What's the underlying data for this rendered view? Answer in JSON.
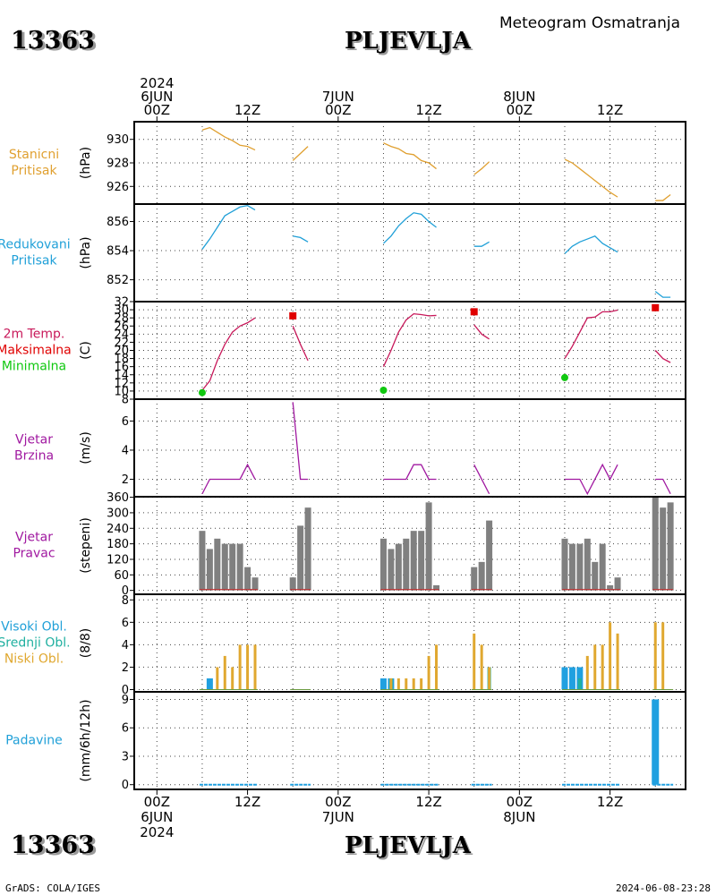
{
  "header": {
    "station_id": "13363",
    "station_name": "PLJEVLJA",
    "title": "Meteogram Osmatranja"
  },
  "footer": {
    "left": "GrADS: COLA/IGES",
    "right": "2024-06-08-23:28"
  },
  "colors": {
    "pressure": "#e0a030",
    "reduced": "#20a0d8",
    "temp": "#c8185a",
    "max": "#e00000",
    "min": "#10c810",
    "wind": "#a018a0",
    "direction_bar": "#808080",
    "direction_base": "#c03030",
    "high_cloud": "#20a0e0",
    "mid_cloud": "#20b0a0",
    "low_cloud": "#e0a830",
    "precip": "#20a0e0"
  },
  "time_axis": {
    "top": [
      {
        "h": 0,
        "lines": [
          "2024",
          "6JUN",
          "00Z"
        ]
      },
      {
        "h": 12,
        "lines": [
          "12Z"
        ]
      },
      {
        "h": 24,
        "lines": [
          "7JUN",
          "00Z"
        ]
      },
      {
        "h": 36,
        "lines": [
          "12Z"
        ]
      },
      {
        "h": 48,
        "lines": [
          "8JUN",
          "00Z"
        ]
      },
      {
        "h": 60,
        "lines": [
          "12Z"
        ]
      }
    ],
    "bottom": [
      {
        "h": 0,
        "lines": [
          "00Z",
          "6JUN",
          "2024"
        ]
      },
      {
        "h": 12,
        "lines": [
          "12Z"
        ]
      },
      {
        "h": 24,
        "lines": [
          "00Z",
          "7JUN"
        ]
      },
      {
        "h": 36,
        "lines": [
          "12Z"
        ]
      },
      {
        "h": 48,
        "lines": [
          "00Z",
          "8JUN"
        ]
      },
      {
        "h": 60,
        "lines": [
          "12Z"
        ]
      }
    ]
  },
  "chart_data": [
    {
      "id": "station_pressure",
      "type": "line",
      "labels": [
        {
          "text": "Stanicni",
          "color": "#e0a030"
        },
        {
          "text": "Pritisak",
          "color": "#e0a030"
        }
      ],
      "unit": "(hPa)",
      "ylim": [
        924.5,
        931.5
      ],
      "yticks": [
        926,
        928,
        930
      ],
      "series": [
        {
          "color": "#e0a030",
          "points": [
            [
              6,
              930.8
            ],
            [
              7,
              931.0
            ],
            [
              8,
              930.6
            ],
            [
              9,
              930.2
            ],
            [
              10,
              929.9
            ],
            [
              11,
              929.5
            ],
            [
              12,
              929.4
            ],
            [
              13,
              929.1
            ]
          ]
        },
        {
          "color": "#e0a030",
          "points": [
            [
              18,
              928.2
            ],
            [
              19,
              928.8
            ],
            [
              20,
              929.4
            ]
          ]
        },
        {
          "color": "#e0a030",
          "points": [
            [
              30,
              929.7
            ],
            [
              31,
              929.4
            ],
            [
              32,
              929.2
            ],
            [
              33,
              928.8
            ],
            [
              34,
              928.7
            ],
            [
              35,
              928.2
            ],
            [
              36,
              928.0
            ],
            [
              37,
              927.5
            ]
          ]
        },
        {
          "color": "#e0a030",
          "points": [
            [
              42,
              927.0
            ],
            [
              43,
              927.5
            ],
            [
              44,
              928.1
            ]
          ]
        },
        {
          "color": "#e0a030",
          "points": [
            [
              54,
              928.3
            ],
            [
              55,
              928.0
            ],
            [
              56,
              927.5
            ],
            [
              57,
              927.0
            ],
            [
              58,
              926.5
            ],
            [
              59,
              926.0
            ],
            [
              60,
              925.5
            ],
            [
              61,
              925.1
            ]
          ]
        },
        {
          "color": "#e0a030",
          "points": [
            [
              66,
              924.8
            ],
            [
              67,
              924.8
            ],
            [
              68,
              925.3
            ]
          ]
        }
      ]
    },
    {
      "id": "reduced_pressure",
      "type": "line",
      "labels": [
        {
          "text": "Redukovani",
          "color": "#20a0d8"
        },
        {
          "text": "Pritisak",
          "color": "#20a0d8"
        }
      ],
      "unit": "(hPa)",
      "ylim": [
        850.5,
        857.2
      ],
      "yticks": [
        852,
        854,
        856
      ],
      "series": [
        {
          "color": "#20a0d8",
          "points": [
            [
              6,
              854.1
            ],
            [
              7,
              854.8
            ],
            [
              8,
              855.6
            ],
            [
              9,
              856.4
            ],
            [
              10,
              856.7
            ],
            [
              11,
              857.0
            ],
            [
              12,
              857.1
            ],
            [
              13,
              856.8
            ]
          ]
        },
        {
          "color": "#20a0d8",
          "points": [
            [
              18,
              855.0
            ],
            [
              19,
              854.9
            ],
            [
              20,
              854.6
            ]
          ]
        },
        {
          "color": "#20a0d8",
          "points": [
            [
              30,
              854.5
            ],
            [
              31,
              855.0
            ],
            [
              32,
              855.7
            ],
            [
              33,
              856.2
            ],
            [
              34,
              856.6
            ],
            [
              35,
              856.5
            ],
            [
              36,
              856.0
            ],
            [
              37,
              855.6
            ]
          ]
        },
        {
          "color": "#20a0d8",
          "points": [
            [
              42,
              854.3
            ],
            [
              43,
              854.3
            ],
            [
              44,
              854.6
            ]
          ]
        },
        {
          "color": "#20a0d8",
          "points": [
            [
              54,
              853.8
            ],
            [
              55,
              854.3
            ],
            [
              56,
              854.6
            ],
            [
              57,
              854.8
            ],
            [
              58,
              855.0
            ],
            [
              59,
              854.5
            ],
            [
              60,
              854.2
            ],
            [
              61,
              853.9
            ]
          ]
        },
        {
          "color": "#20a0d8",
          "points": [
            [
              66,
              851.2
            ],
            [
              67,
              850.8
            ],
            [
              68,
              850.8
            ]
          ]
        }
      ]
    },
    {
      "id": "temperature",
      "type": "line",
      "labels": [
        {
          "text": "2m Temp.",
          "color": "#c8185a"
        },
        {
          "text": "Maksimalna",
          "color": "#e00000"
        },
        {
          "text": "Minimalna",
          "color": "#10c810"
        }
      ],
      "unit": "(C)",
      "ylim": [
        8,
        32
      ],
      "yticks": [
        8,
        10,
        12,
        14,
        16,
        18,
        20,
        22,
        24,
        26,
        28,
        30,
        32
      ],
      "series": [
        {
          "color": "#c8185a",
          "points": [
            [
              6,
              10.2
            ],
            [
              7,
              12.5
            ],
            [
              8,
              17.5
            ],
            [
              9,
              21.5
            ],
            [
              10,
              24.5
            ],
            [
              11,
              26.0
            ],
            [
              12,
              26.8
            ],
            [
              13,
              28.0
            ]
          ]
        },
        {
          "color": "#c8185a",
          "points": [
            [
              18,
              26.0
            ],
            [
              19,
              21.5
            ],
            [
              20,
              17.5
            ]
          ]
        },
        {
          "color": "#c8185a",
          "points": [
            [
              30,
              16.0
            ],
            [
              31,
              20.0
            ],
            [
              32,
              24.5
            ],
            [
              33,
              27.5
            ],
            [
              34,
              29.0
            ],
            [
              35,
              28.8
            ],
            [
              36,
              28.5
            ],
            [
              37,
              28.6
            ]
          ]
        },
        {
          "color": "#c8185a",
          "points": [
            [
              42,
              26.3
            ],
            [
              43,
              24.0
            ],
            [
              44,
              22.8
            ]
          ]
        },
        {
          "color": "#c8185a",
          "points": [
            [
              54,
              18.0
            ],
            [
              55,
              21.0
            ],
            [
              56,
              24.5
            ],
            [
              57,
              28.0
            ],
            [
              58,
              28.2
            ],
            [
              59,
              29.5
            ],
            [
              60,
              29.5
            ],
            [
              61,
              29.9
            ]
          ]
        },
        {
          "color": "#c8185a",
          "points": [
            [
              66,
              20.0
            ],
            [
              67,
              18.0
            ],
            [
              68,
              17.0
            ]
          ]
        }
      ],
      "maxima": [
        [
          18,
          28.5
        ],
        [
          42,
          29.5
        ],
        [
          66,
          30.5
        ]
      ],
      "minima": [
        [
          6,
          9.6
        ],
        [
          30,
          10.2
        ],
        [
          54,
          13.3
        ]
      ]
    },
    {
      "id": "wind_speed",
      "type": "line",
      "labels": [
        {
          "text": "Vjetar",
          "color": "#a018a0"
        },
        {
          "text": "Brzina",
          "color": "#a018a0"
        }
      ],
      "unit": "(m/s)",
      "ylim": [
        0.8,
        7.5
      ],
      "yticks": [
        2,
        4,
        6
      ],
      "series": [
        {
          "color": "#a018a0",
          "points": [
            [
              6,
              1.0
            ],
            [
              7,
              2.0
            ],
            [
              8,
              2.0
            ],
            [
              9,
              2.0
            ],
            [
              10,
              2.0
            ],
            [
              11,
              2.0
            ],
            [
              12,
              3.0
            ],
            [
              13,
              2.0
            ]
          ]
        },
        {
          "color": "#a018a0",
          "points": [
            [
              18,
              7.3
            ],
            [
              19,
              2.0
            ],
            [
              20,
              2.0
            ]
          ]
        },
        {
          "color": "#a018a0",
          "points": [
            [
              30,
              2.0
            ],
            [
              31,
              2.0
            ],
            [
              32,
              2.0
            ],
            [
              33,
              2.0
            ],
            [
              34,
              3.0
            ],
            [
              35,
              3.0
            ],
            [
              36,
              2.0
            ],
            [
              37,
              2.0
            ]
          ]
        },
        {
          "color": "#a018a0",
          "points": [
            [
              42,
              3.0
            ],
            [
              43,
              2.0
            ],
            [
              44,
              1.0
            ]
          ]
        },
        {
          "color": "#a018a0",
          "points": [
            [
              54,
              2.0
            ],
            [
              55,
              2.0
            ],
            [
              56,
              2.0
            ],
            [
              57,
              1.0
            ],
            [
              58,
              2.0
            ],
            [
              59,
              3.0
            ],
            [
              60,
              2.0
            ],
            [
              61,
              3.0
            ]
          ]
        },
        {
          "color": "#a018a0",
          "points": [
            [
              66,
              2.0
            ],
            [
              67,
              2.0
            ],
            [
              68,
              1.0
            ]
          ]
        }
      ]
    },
    {
      "id": "wind_direction",
      "type": "bar",
      "labels": [
        {
          "text": "Vjetar",
          "color": "#a018a0"
        },
        {
          "text": "Pravac",
          "color": "#a018a0"
        }
      ],
      "unit": "(stepeni)",
      "ylim": [
        -15,
        362
      ],
      "yticks": [
        0,
        60,
        120,
        180,
        240,
        300,
        360
      ],
      "bar_color": "#808080",
      "bars": [
        [
          6,
          230
        ],
        [
          7,
          160
        ],
        [
          8,
          200
        ],
        [
          9,
          180
        ],
        [
          10,
          180
        ],
        [
          11,
          180
        ],
        [
          12,
          90
        ],
        [
          13,
          50
        ],
        [
          18,
          50
        ],
        [
          19,
          250
        ],
        [
          20,
          320
        ],
        [
          30,
          200
        ],
        [
          31,
          160
        ],
        [
          32,
          180
        ],
        [
          33,
          200
        ],
        [
          34,
          230
        ],
        [
          35,
          230
        ],
        [
          36,
          340
        ],
        [
          37,
          20
        ],
        [
          42,
          90
        ],
        [
          43,
          110
        ],
        [
          44,
          270
        ],
        [
          54,
          200
        ],
        [
          55,
          180
        ],
        [
          56,
          180
        ],
        [
          57,
          200
        ],
        [
          58,
          110
        ],
        [
          59,
          180
        ],
        [
          60,
          20
        ],
        [
          61,
          50
        ],
        [
          66,
          360
        ],
        [
          67,
          320
        ],
        [
          68,
          340
        ]
      ]
    },
    {
      "id": "clouds",
      "type": "bar",
      "labels": [
        {
          "text": "Visoki Obl.",
          "color": "#20a0d8"
        },
        {
          "text": "Srednji Obl.",
          "color": "#20b0a0"
        },
        {
          "text": "Niski Obl.",
          "color": "#e0a830"
        }
      ],
      "unit": "(8/8)",
      "ylim": [
        -0.2,
        8.5
      ],
      "yticks": [
        0,
        2,
        4,
        6,
        8
      ],
      "high": [
        [
          7,
          1
        ],
        [
          30,
          1
        ],
        [
          31,
          1
        ],
        [
          54,
          2
        ],
        [
          55,
          2
        ],
        [
          56,
          2
        ]
      ],
      "mid": [
        [
          31,
          1
        ],
        [
          44,
          2
        ],
        [
          56,
          1
        ]
      ],
      "low": [
        [
          8,
          2
        ],
        [
          9,
          3
        ],
        [
          10,
          2
        ],
        [
          11,
          4
        ],
        [
          12,
          4
        ],
        [
          13,
          4
        ],
        [
          31,
          1
        ],
        [
          32,
          1
        ],
        [
          33,
          1
        ],
        [
          34,
          1
        ],
        [
          35,
          1
        ],
        [
          36,
          3
        ],
        [
          37,
          4
        ],
        [
          42,
          5
        ],
        [
          43,
          4
        ],
        [
          44,
          2
        ],
        [
          57,
          3
        ],
        [
          58,
          4
        ],
        [
          59,
          4
        ],
        [
          60,
          6
        ],
        [
          61,
          5
        ],
        [
          66,
          6
        ],
        [
          67,
          6
        ]
      ]
    },
    {
      "id": "precipitation",
      "type": "bar",
      "labels": [
        {
          "text": "Padavine",
          "color": "#20a0d8"
        }
      ],
      "unit": "(mm/6h/12h)",
      "ylim": [
        -0.5,
        9.8
      ],
      "yticks": [
        0,
        3,
        6,
        9
      ],
      "bars": [
        [
          66,
          9.0
        ]
      ],
      "trace_segments": [
        [
          6,
          13
        ],
        [
          18,
          20
        ],
        [
          30,
          37
        ],
        [
          42,
          44
        ],
        [
          54,
          61
        ],
        [
          66,
          68
        ]
      ]
    }
  ]
}
